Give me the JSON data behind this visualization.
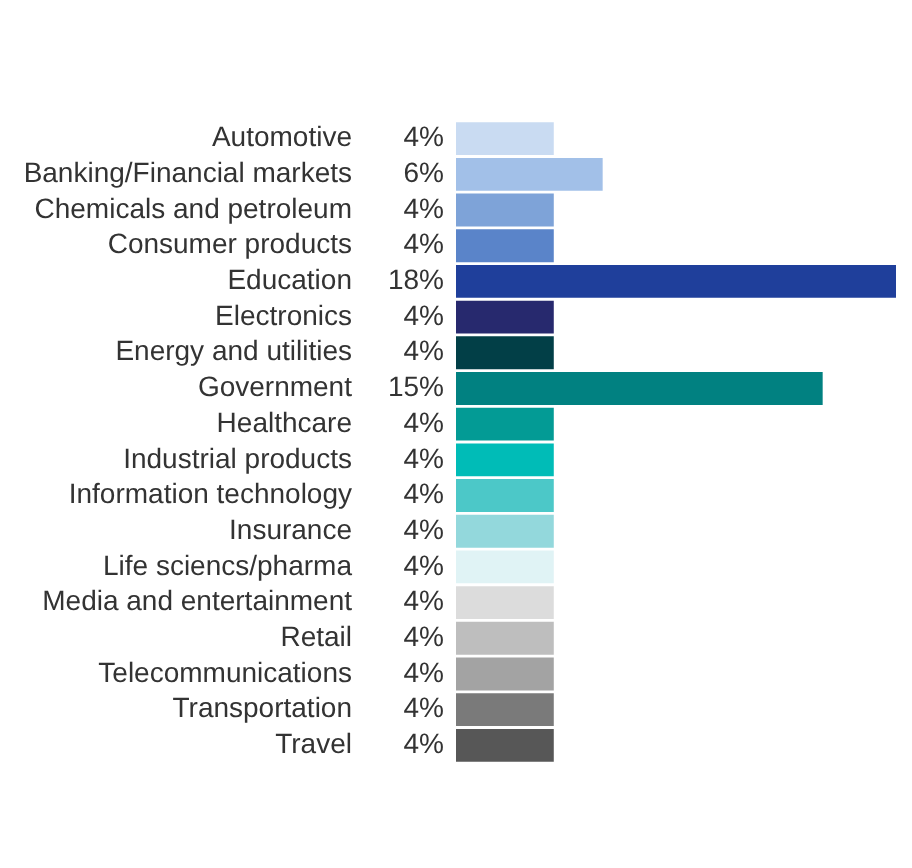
{
  "chart_data": {
    "type": "bar",
    "orientation": "horizontal",
    "categories": [
      "Automotive",
      "Banking/Financial markets",
      "Chemicals and petroleum",
      "Consumer products",
      "Education",
      "Electronics",
      "Energy and utilities",
      "Government",
      "Healthcare",
      "Industrial products",
      "Information technology",
      "Insurance",
      "Life sciencs/pharma",
      "Media and entertainment",
      "Retail",
      "Telecommunications",
      "Transportation",
      "Travel"
    ],
    "values": [
      4,
      6,
      4,
      4,
      18,
      4,
      4,
      15,
      4,
      4,
      4,
      4,
      4,
      4,
      4,
      4,
      4,
      4
    ],
    "value_labels": [
      "4%",
      "6%",
      "4%",
      "4%",
      "18%",
      "4%",
      "4%",
      "15%",
      "4%",
      "4%",
      "4%",
      "4%",
      "4%",
      "4%",
      "4%",
      "4%",
      "4%",
      "4%"
    ],
    "colors": [
      "#c9dbf2",
      "#a2c0e8",
      "#7ea3d8",
      "#5a84c9",
      "#1f3f9b",
      "#27296e",
      "#023f47",
      "#018181",
      "#039b95",
      "#00bcb7",
      "#4cc8c8",
      "#93d8dc",
      "#e0f3f5",
      "#dcdcdc",
      "#bebebe",
      "#a3a3a3",
      "#7a7a7a",
      "#575757"
    ],
    "legend": false
  }
}
